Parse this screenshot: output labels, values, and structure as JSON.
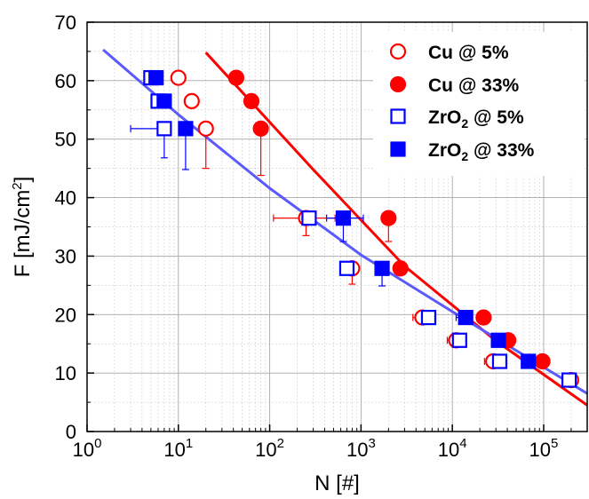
{
  "chart_data": {
    "type": "scatter",
    "xlabel": "N [#]",
    "ylabel_main": "F [mJ/cm",
    "ylabel_sup": "2",
    "ylabel_end": "]",
    "x_scale": "log",
    "xlim": [
      1,
      300000
    ],
    "ylim": [
      0,
      70
    ],
    "x_ticks": [
      {
        "value": 1,
        "base": "10",
        "exp": "0"
      },
      {
        "value": 10,
        "base": "10",
        "exp": "1"
      },
      {
        "value": 100,
        "base": "10",
        "exp": "2"
      },
      {
        "value": 1000,
        "base": "10",
        "exp": "3"
      },
      {
        "value": 10000,
        "base": "10",
        "exp": "4"
      },
      {
        "value": 100000,
        "base": "10",
        "exp": "5"
      }
    ],
    "y_ticks": [
      "0",
      "10",
      "20",
      "30",
      "40",
      "50",
      "60",
      "70"
    ],
    "grid": true,
    "legend_position": "top-right",
    "series": [
      {
        "name_main": "Cu @ 5%",
        "name_sub": "",
        "name_rest": "",
        "color": "#ff0000",
        "marker": "circle",
        "filled": false,
        "points": [
          {
            "x": 10,
            "y": 60.5,
            "xerr": [
              0,
              0
            ],
            "yerr": [
              0,
              0
            ]
          },
          {
            "x": 14,
            "y": 56.5,
            "xerr": [
              0,
              0
            ],
            "yerr": [
              0,
              0
            ]
          },
          {
            "x": 20,
            "y": 51.8,
            "xerr": [
              0,
              0
            ],
            "yerr": [
              6.8,
              0
            ]
          },
          {
            "x": 250,
            "y": 36.5,
            "xerr": [
              140,
              270
            ],
            "yerr": [
              3,
              0
            ]
          },
          {
            "x": 800,
            "y": 27.9,
            "xerr": [
              200,
              0
            ],
            "yerr": [
              2.7,
              0
            ]
          },
          {
            "x": 4700,
            "y": 19.5,
            "xerr": [
              1000,
              0
            ],
            "yerr": [
              0,
              0
            ]
          },
          {
            "x": 11000,
            "y": 15.6,
            "xerr": [
              2200,
              0
            ],
            "yerr": [
              0,
              0
            ]
          },
          {
            "x": 28000,
            "y": 12.0,
            "xerr": [
              5500,
              0
            ],
            "yerr": [
              0,
              0
            ]
          },
          {
            "x": 200000,
            "y": 8.8,
            "xerr": [
              40000,
              0
            ],
            "yerr": [
              0,
              0
            ]
          }
        ]
      },
      {
        "name_main": "Cu @ 33%",
        "name_sub": "",
        "name_rest": "",
        "color": "#ff0000",
        "marker": "circle",
        "filled": true,
        "points": [
          {
            "x": 43,
            "y": 60.5,
            "xerr": [
              0,
              0
            ],
            "yerr": [
              0,
              0
            ]
          },
          {
            "x": 63,
            "y": 56.5,
            "xerr": [
              0,
              0
            ],
            "yerr": [
              0,
              0
            ]
          },
          {
            "x": 80,
            "y": 51.8,
            "xerr": [
              0,
              0
            ],
            "yerr": [
              8,
              0
            ]
          },
          {
            "x": 2000,
            "y": 36.5,
            "xerr": [
              0,
              0
            ],
            "yerr": [
              4,
              0
            ]
          },
          {
            "x": 2700,
            "y": 27.9,
            "xerr": [
              0,
              0
            ],
            "yerr": [
              0,
              0
            ]
          },
          {
            "x": 22000,
            "y": 19.5,
            "xerr": [
              0,
              0
            ],
            "yerr": [
              0,
              0
            ]
          },
          {
            "x": 41000,
            "y": 15.6,
            "xerr": [
              0,
              0
            ],
            "yerr": [
              0,
              0
            ]
          },
          {
            "x": 97000,
            "y": 12.0,
            "xerr": [
              0,
              0
            ],
            "yerr": [
              0,
              0
            ]
          }
        ]
      },
      {
        "name_main": "ZrO",
        "name_sub": "2",
        "name_rest": " @ 5%",
        "color": "#0000ff",
        "marker": "square",
        "filled": false,
        "points": [
          {
            "x": 5,
            "y": 60.5,
            "xerr": [
              0,
              0
            ],
            "yerr": [
              0,
              0
            ]
          },
          {
            "x": 6,
            "y": 56.5,
            "xerr": [
              0,
              0
            ],
            "yerr": [
              0,
              0
            ]
          },
          {
            "x": 7,
            "y": 51.8,
            "xerr": [
              4,
              0
            ],
            "yerr": [
              5,
              0
            ]
          },
          {
            "x": 270,
            "y": 36.5,
            "xerr": [
              0,
              0
            ],
            "yerr": [
              0,
              0
            ]
          },
          {
            "x": 700,
            "y": 27.9,
            "xerr": [
              0,
              0
            ],
            "yerr": [
              0,
              0
            ]
          },
          {
            "x": 5500,
            "y": 19.5,
            "xerr": [
              0,
              0
            ],
            "yerr": [
              0,
              0
            ]
          },
          {
            "x": 12000,
            "y": 15.6,
            "xerr": [
              0,
              0
            ],
            "yerr": [
              0,
              0
            ]
          },
          {
            "x": 33000,
            "y": 12.0,
            "xerr": [
              0,
              0
            ],
            "yerr": [
              0,
              0
            ]
          },
          {
            "x": 190000,
            "y": 8.8,
            "xerr": [
              0,
              0
            ],
            "yerr": [
              0,
              0
            ]
          }
        ]
      },
      {
        "name_main": "ZrO",
        "name_sub": "2",
        "name_rest": " @ 33%",
        "color": "#0000ff",
        "marker": "square",
        "filled": true,
        "points": [
          {
            "x": 5.7,
            "y": 60.5,
            "xerr": [
              0,
              0
            ],
            "yerr": [
              0,
              0
            ]
          },
          {
            "x": 7,
            "y": 56.5,
            "xerr": [
              0,
              0
            ],
            "yerr": [
              0,
              0
            ]
          },
          {
            "x": 12,
            "y": 51.8,
            "xerr": [
              0,
              0
            ],
            "yerr": [
              7,
              0
            ]
          },
          {
            "x": 640,
            "y": 36.5,
            "xerr": [
              220,
              420
            ],
            "yerr": [
              4,
              0
            ]
          },
          {
            "x": 1700,
            "y": 27.9,
            "xerr": [
              0,
              0
            ],
            "yerr": [
              3,
              0
            ]
          },
          {
            "x": 14000,
            "y": 19.5,
            "xerr": [
              3000,
              0
            ],
            "yerr": [
              0,
              0
            ]
          },
          {
            "x": 32000,
            "y": 15.6,
            "xerr": [
              0,
              0
            ],
            "yerr": [
              0,
              0
            ]
          },
          {
            "x": 68000,
            "y": 12.0,
            "xerr": [
              0,
              0
            ],
            "yerr": [
              0,
              0
            ]
          }
        ]
      }
    ],
    "fit_lines": [
      {
        "color": "#ff0000",
        "x": [
          20,
          300,
          3000,
          30000,
          300000
        ],
        "y": [
          64.8,
          44.8,
          28.3,
          15.5,
          4.5
        ]
      },
      {
        "color": "#5a5aff",
        "x": [
          1.5,
          10,
          100,
          1000,
          10000,
          100000,
          300000
        ],
        "y": [
          65.3,
          54.2,
          41.6,
          30.2,
          20.5,
          11.0,
          6.5
        ]
      }
    ]
  }
}
